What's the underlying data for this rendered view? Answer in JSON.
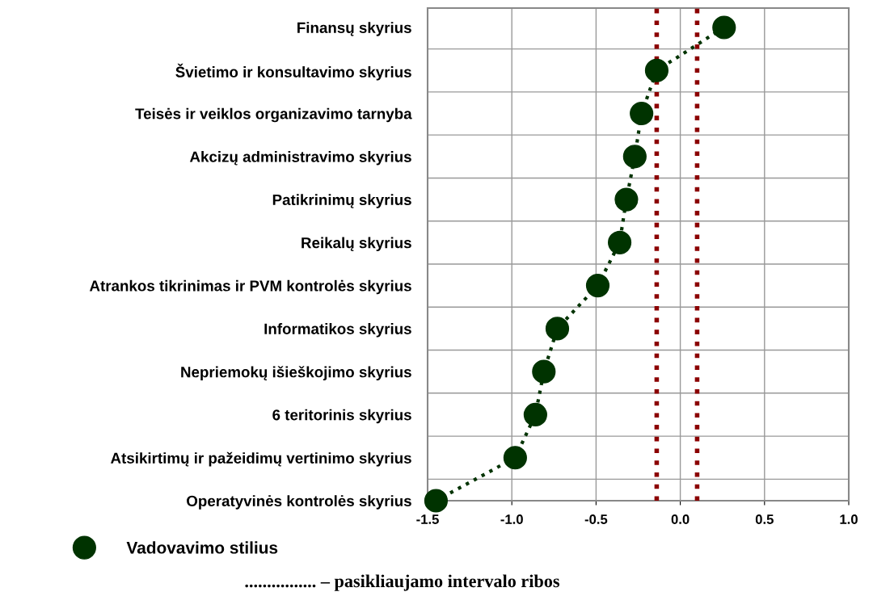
{
  "chart_data": {
    "type": "line",
    "orientation": "horizontal",
    "categories": [
      "Finansų skyrius",
      "Švietimo ir konsultavimo skyrius",
      "Teisės ir veiklos organizavimo tarnyba",
      "Akcizų administravimo skyrius",
      "Patikrinimų skyrius",
      "Reikalų skyrius",
      "Atrankos tikrinimas ir PVM kontrolės skyrius",
      "Informatikos skyrius",
      "Nepriemokų išieškojimo skyrius",
      "6 teritorinis skyrius",
      "Atsikirtimų ir pažeidimų vertinimo skyrius",
      "Operatyvinės kontrolės skyrius"
    ],
    "series": [
      {
        "name": "Vadovavimo stilius",
        "color": "#003300",
        "values": [
          0.26,
          -0.14,
          -0.23,
          -0.27,
          -0.32,
          -0.36,
          -0.49,
          -0.73,
          -0.81,
          -0.86,
          -0.98,
          -1.45
        ]
      }
    ],
    "xlim": [
      -1.5,
      1.0
    ],
    "xticks": [
      {
        "value": -1.5,
        "label": "-1.5"
      },
      {
        "value": -1.0,
        "label": "-1.0"
      },
      {
        "value": -0.5,
        "label": "-0.5"
      },
      {
        "value": 0.0,
        "label": "0.0"
      },
      {
        "value": 0.5,
        "label": "0.5"
      },
      {
        "value": 1.0,
        "label": "1.0"
      }
    ],
    "ref_lines": [
      {
        "axis": "x",
        "value": -0.14,
        "color": "#8b0000",
        "line_style": "dotted"
      },
      {
        "axis": "x",
        "value": 0.1,
        "color": "#8b0000",
        "line_style": "dotted"
      }
    ],
    "marker": "circle",
    "line_style": "dotted",
    "grid": true,
    "legend": "bottom left",
    "annotations": [
      "................ – pasikliaujamo intervalo ribos"
    ]
  }
}
